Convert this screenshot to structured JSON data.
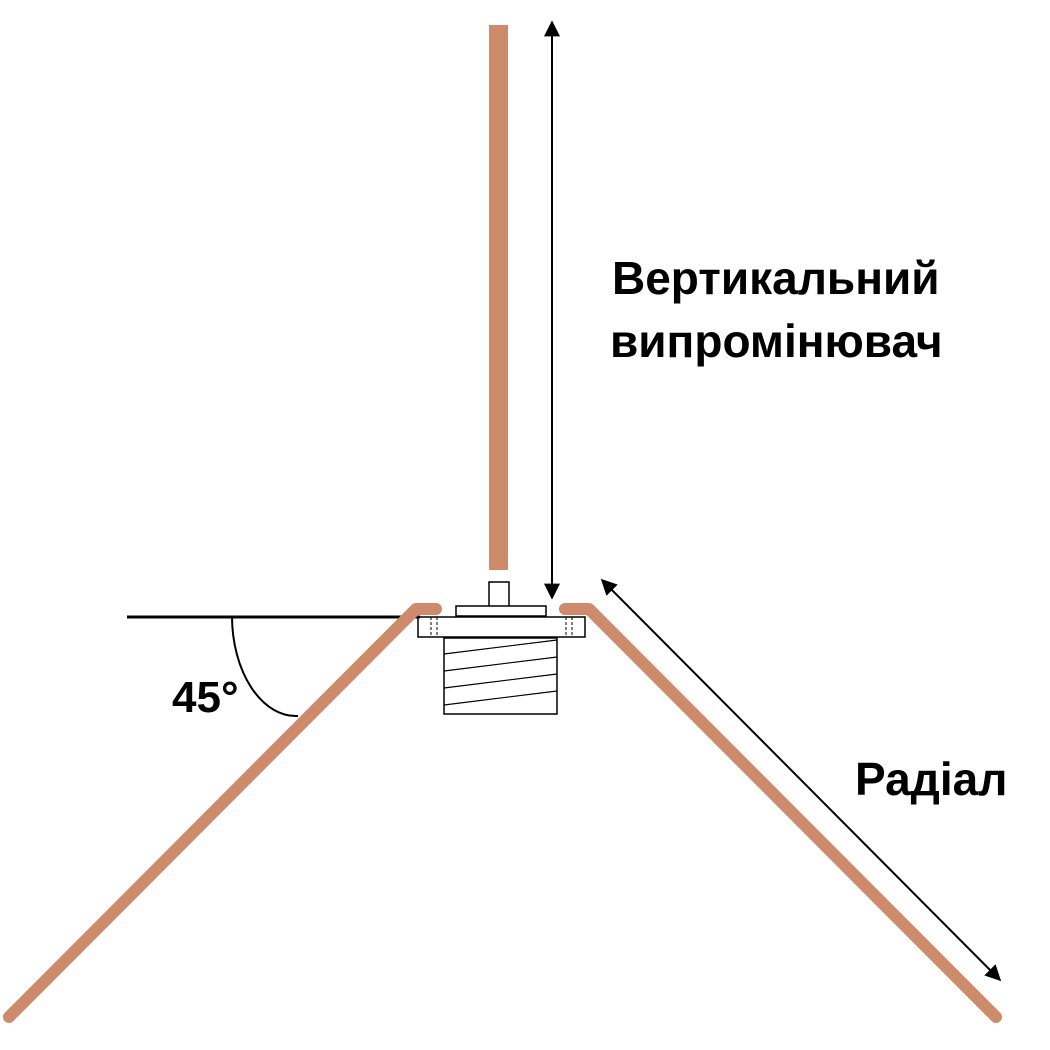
{
  "labels": {
    "vertical_line1": "Вертикальний",
    "vertical_line2": "випромінювач",
    "radial": "Радіал",
    "angle": "45°"
  },
  "colors": {
    "wire": "#CD8B6B",
    "line": "#000000",
    "background": "#FFFFFF"
  }
}
